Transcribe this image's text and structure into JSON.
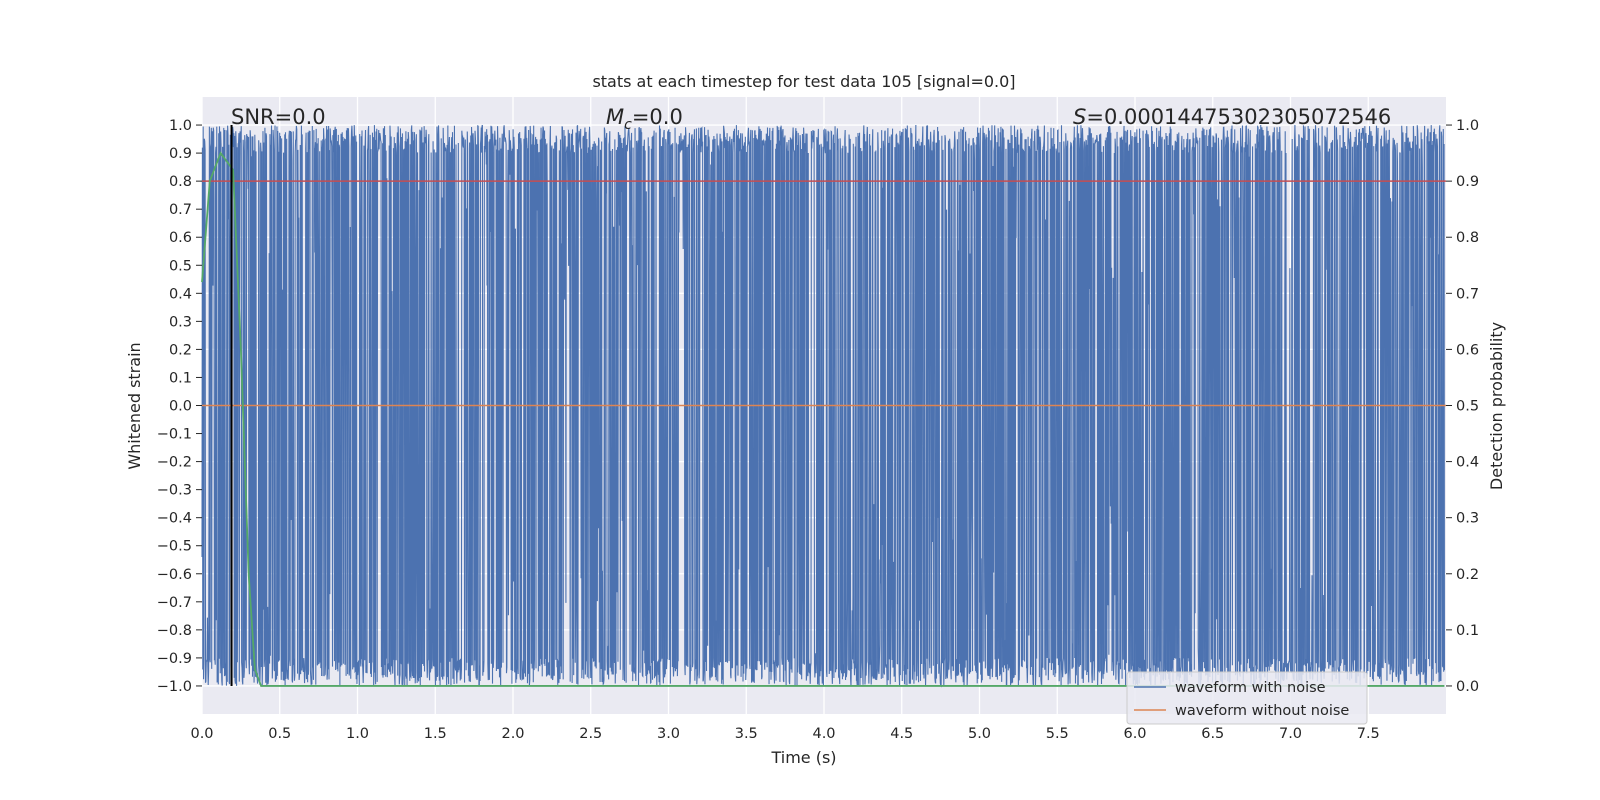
{
  "chart_data": {
    "type": "line",
    "title": "stats at each timestep for test data 105 [signal=0.0]",
    "xlabel": "Time (s)",
    "ylabel_left": "Whitened strain",
    "ylabel_right": "Detection probability",
    "xlim": [
      0.0,
      8.0
    ],
    "ylim_left": [
      -1.1,
      1.1
    ],
    "ylim_right": [
      -0.05,
      1.05
    ],
    "x_ticks": [
      "0.0",
      "0.5",
      "1.0",
      "1.5",
      "2.0",
      "2.5",
      "3.0",
      "3.5",
      "4.0",
      "4.5",
      "5.0",
      "5.5",
      "6.0",
      "6.5",
      "7.0",
      "7.5"
    ],
    "y_left_ticks": [
      "1.0",
      "0.9",
      "0.8",
      "0.7",
      "0.6",
      "0.5",
      "0.4",
      "0.3",
      "0.2",
      "0.1",
      "0.0",
      "−0.1",
      "−0.2",
      "−0.3",
      "−0.4",
      "−0.5",
      "−0.6",
      "−0.7",
      "−0.8",
      "−0.9",
      "−1.0"
    ],
    "y_right_ticks": [
      "1.0",
      "0.9",
      "0.8",
      "0.7",
      "0.6",
      "0.5",
      "0.4",
      "0.3",
      "0.2",
      "0.1",
      "0.0"
    ],
    "grid": true,
    "legend_placement": "lower-right",
    "annotations": {
      "snr": "SNR=0.0",
      "mc_symbol": "M",
      "mc_sub": "c",
      "mc_value": "=0.0",
      "s_symbol": "S",
      "s_value": "=0.00014475302305072546"
    },
    "series": [
      {
        "name": "waveform with noise",
        "axis": "left",
        "color": "#4c72b0",
        "description_kind": "dense noise",
        "t_start": 0.0,
        "t_end": 7.99,
        "amplitude": 1.0
      },
      {
        "name": "waveform without noise",
        "axis": "left",
        "color": "#dd8452",
        "x": [
          0.0,
          8.0
        ],
        "y": [
          0.0,
          0.0
        ]
      },
      {
        "axis": "right",
        "color": "#55a868",
        "x": [
          0.0,
          0.05,
          0.12,
          0.2,
          0.25,
          0.3,
          0.34,
          0.38,
          0.5,
          1.0,
          2.0,
          3.0,
          4.0,
          5.0,
          6.0,
          7.0,
          7.99
        ],
        "y": [
          0.72,
          0.9,
          0.95,
          0.92,
          0.6,
          0.2,
          0.03,
          0.0,
          0.0,
          0.0,
          0.0,
          0.0,
          0.0,
          0.0,
          0.0,
          0.0,
          0.0
        ]
      },
      {
        "axis": "right",
        "color": "#c44e52",
        "x": [
          0.0,
          8.0
        ],
        "y": [
          0.9,
          0.9
        ]
      }
    ],
    "vertical_marker": {
      "x": 0.19,
      "color": "#000000",
      "y_from": -1.0,
      "y_to": 1.0
    }
  }
}
